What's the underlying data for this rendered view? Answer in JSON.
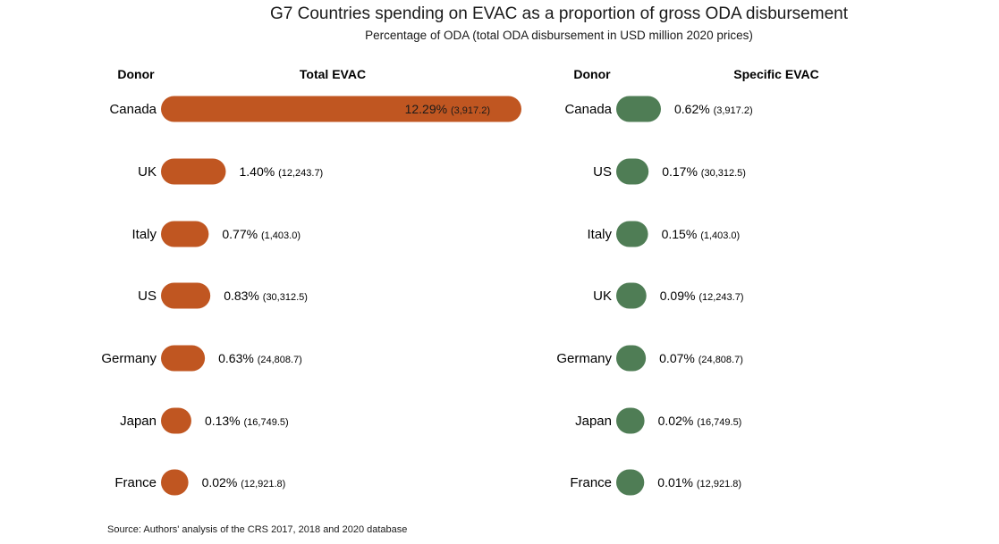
{
  "title": "G7 Countries spending on EVAC as a proportion of gross ODA disbursement",
  "subtitle": "Percentage of ODA (total ODA disbursement in USD million 2020 prices)",
  "source": "Source: Authors' analysis of the CRS 2017, 2018 and 2020 database",
  "colors": {
    "total": "#c05621",
    "specific": "#4f7d55"
  },
  "chart_data": [
    {
      "type": "bar",
      "orientation": "horizontal",
      "title": "Total EVAC",
      "category_header": "Donor",
      "series_header": "Total EVAC",
      "categories": [
        "Canada",
        "UK",
        "Italy",
        "US",
        "Germany",
        "Japan",
        "France"
      ],
      "values": [
        12.29,
        1.4,
        0.77,
        0.83,
        0.63,
        0.13,
        0.02
      ],
      "value_labels": [
        "12.29%",
        "1.40%",
        "0.77%",
        "0.83%",
        "0.63%",
        "0.13%",
        "0.02%"
      ],
      "oda_labels": [
        "(3,917.2)",
        "(12,243.7)",
        "(1,403.0)",
        "(30,312.5)",
        "(24,808.7)",
        "(16,749.5)",
        "(12,921.8)"
      ],
      "oda_usd_million": [
        3917.2,
        12243.7,
        1403.0,
        30312.5,
        24808.7,
        16749.5,
        12921.8
      ]
    },
    {
      "type": "bar",
      "orientation": "horizontal",
      "title": "Specific EVAC",
      "category_header": "Donor",
      "series_header": "Specific EVAC",
      "categories": [
        "Canada",
        "US",
        "Italy",
        "UK",
        "Germany",
        "Japan",
        "France"
      ],
      "values": [
        0.62,
        0.17,
        0.15,
        0.09,
        0.07,
        0.02,
        0.01
      ],
      "value_labels": [
        "0.62%",
        "0.17%",
        "0.15%",
        "0.09%",
        "0.07%",
        "0.02%",
        "0.01%"
      ],
      "oda_labels": [
        "(3,917.2)",
        "(30,312.5)",
        "(1,403.0)",
        "(12,243.7)",
        "(24,808.7)",
        "(16,749.5)",
        "(12,921.8)"
      ],
      "oda_usd_million": [
        3917.2,
        30312.5,
        1403.0,
        12243.7,
        24808.7,
        16749.5,
        12921.8
      ]
    }
  ]
}
